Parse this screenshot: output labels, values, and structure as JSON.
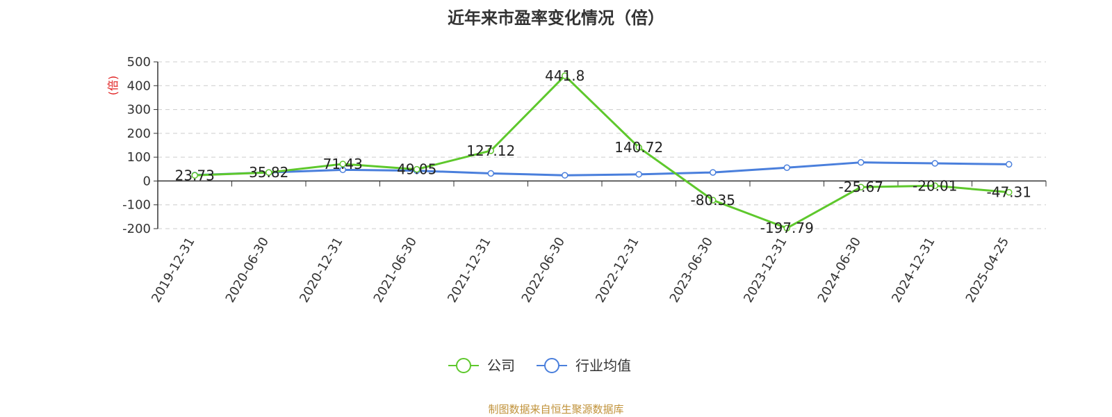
{
  "chart_data": {
    "type": "line",
    "title": "近年来市盈率变化情况（倍）",
    "ylabel": "(倍)",
    "xlabel": "",
    "categories": [
      "2019-12-31",
      "2020-06-30",
      "2020-12-31",
      "2021-06-30",
      "2021-12-31",
      "2022-06-30",
      "2022-12-31",
      "2023-06-30",
      "2023-12-31",
      "2024-06-30",
      "2024-12-31",
      "2025-04-25"
    ],
    "ylim": [
      -200,
      500
    ],
    "yticks": [
      500,
      400,
      300,
      200,
      100,
      0,
      -100,
      -200
    ],
    "grid": true,
    "legend_position": "bottom",
    "series": [
      {
        "name": "公司",
        "color": "#5ec82c",
        "values": [
          23.73,
          35.82,
          71.43,
          49.05,
          127.12,
          441.8,
          140.72,
          -80.35,
          -197.79,
          -25.67,
          -20.01,
          -47.31
        ],
        "labels": [
          "23.73",
          "35.82",
          "71.43",
          "49.05",
          "127.12",
          "441.8",
          "140.72",
          "-80.35",
          "-197.79",
          "-25.67",
          "-20.01",
          "-47.31"
        ]
      },
      {
        "name": "行业均值",
        "color": "#4a7fdc",
        "values": [
          25,
          36,
          47,
          43,
          32,
          24,
          28,
          36,
          56,
          78,
          74,
          70
        ]
      }
    ]
  },
  "footer": {
    "source": "制图数据来自恒生聚源数据库"
  }
}
